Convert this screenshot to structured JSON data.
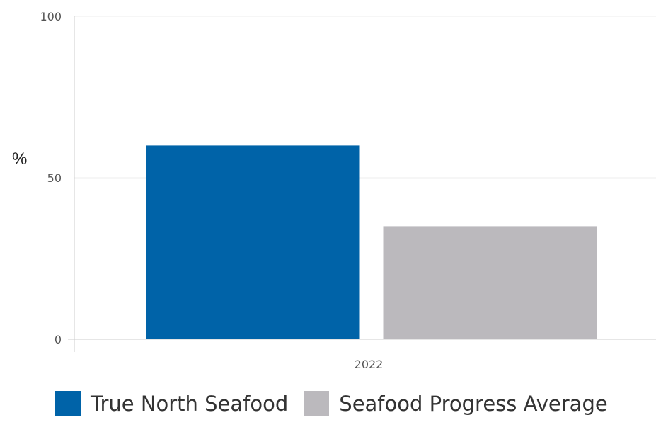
{
  "chart_data": {
    "type": "bar",
    "categories": [
      "2022"
    ],
    "series": [
      {
        "name": "True North Seafood",
        "values": [
          60
        ],
        "color": "#0063a8"
      },
      {
        "name": "Seafood Progress Average",
        "values": [
          35
        ],
        "color": "#bbb9bd"
      }
    ],
    "title": "",
    "xlabel": "",
    "ylabel": "%",
    "ylim": [
      0,
      100
    ],
    "yticks": [
      "0",
      "50",
      "100"
    ],
    "grid": true,
    "legend_position": "bottom"
  }
}
